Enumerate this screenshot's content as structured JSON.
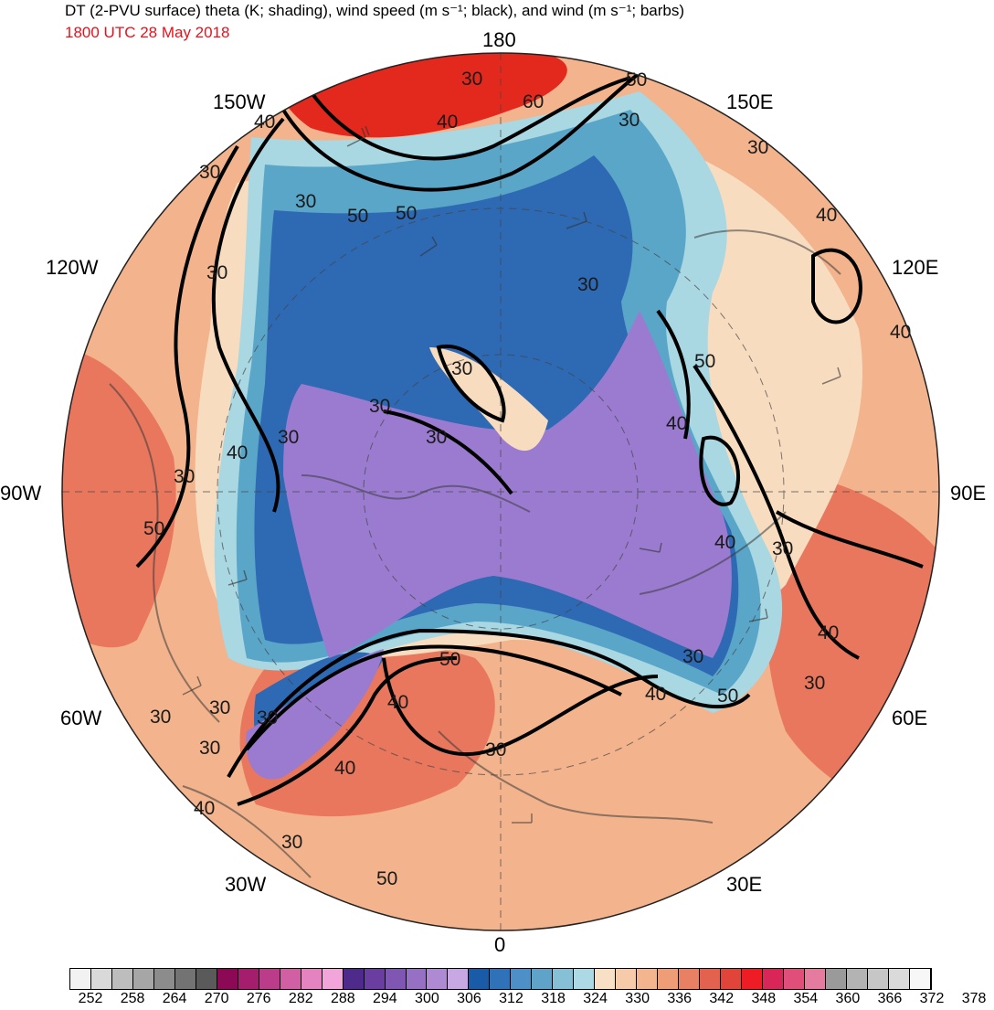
{
  "header": {
    "title": "DT (2-PVU surface) theta (K; shading), wind speed (m s⁻¹; black), and wind (m s⁻¹; barbs)",
    "subtitle": "1800 UTC 28 May 2018"
  },
  "map": {
    "projection": "north-polar-stereographic",
    "longitude_labels": {
      "top": "180",
      "bottom": "0",
      "left": "90W",
      "right": "90E",
      "upper_left": "150W",
      "upper_right": "150E",
      "mid_left_upper": "120W",
      "mid_right_upper": "120E",
      "mid_left_lower": "60W",
      "mid_right_lower": "60E",
      "lower_left": "30W",
      "lower_right": "30E"
    },
    "wind_speed_contour_labels": [
      "30",
      "40",
      "50",
      "60",
      "30",
      "40",
      "30",
      "50",
      "50",
      "30",
      "30",
      "40",
      "30",
      "30",
      "40",
      "30",
      "50",
      "30",
      "40",
      "30",
      "30",
      "40",
      "30",
      "50",
      "40",
      "30",
      "40",
      "50",
      "30",
      "30",
      "40",
      "50",
      "40",
      "30",
      "30",
      "30",
      "30",
      "30",
      "40",
      "40",
      "30",
      "50",
      "40",
      "30",
      "30",
      "50"
    ],
    "colors": {
      "polar_vortex": "#9a7bd0",
      "deep_blue": "#2e69b3",
      "teal": "#5aa6c9",
      "light_teal": "#a9d7e2",
      "cream": "#f8dcc0",
      "peach": "#f2b38d",
      "salmon": "#e8775e",
      "red": "#e3281d",
      "contour": "#000000",
      "coastline": "#3a3a3a"
    }
  },
  "colorbar": {
    "ticks": [
      "252",
      "258",
      "264",
      "270",
      "276",
      "282",
      "288",
      "294",
      "300",
      "306",
      "312",
      "318",
      "324",
      "330",
      "336",
      "342",
      "348",
      "354",
      "360",
      "366",
      "372",
      "378"
    ],
    "colors": [
      "#f2f2f2",
      "#d9d9d9",
      "#bdbdbd",
      "#a6a6a6",
      "#8c8c8c",
      "#737373",
      "#5a5a5a",
      "#8c0a55",
      "#a51e6e",
      "#bb3c88",
      "#d05fa4",
      "#e383bf",
      "#f2a5d8",
      "#4e2a8a",
      "#6a3ea1",
      "#7f56b2",
      "#9670c3",
      "#ad8ad2",
      "#c7a8e2",
      "#1a5ba8",
      "#2f72b8",
      "#4d8fc7",
      "#5fa4c8",
      "#86c0d6",
      "#acd9e4",
      "#f8e0c6",
      "#f5cba9",
      "#f2b58e",
      "#ee9d77",
      "#e88163",
      "#e3624f",
      "#e14438",
      "#ee1c24",
      "#d92659",
      "#e04f7a",
      "#e67ba0",
      "#9a9a9a",
      "#b3b3b3",
      "#c6c6c6",
      "#dadada",
      "#f7f7f7"
    ]
  }
}
